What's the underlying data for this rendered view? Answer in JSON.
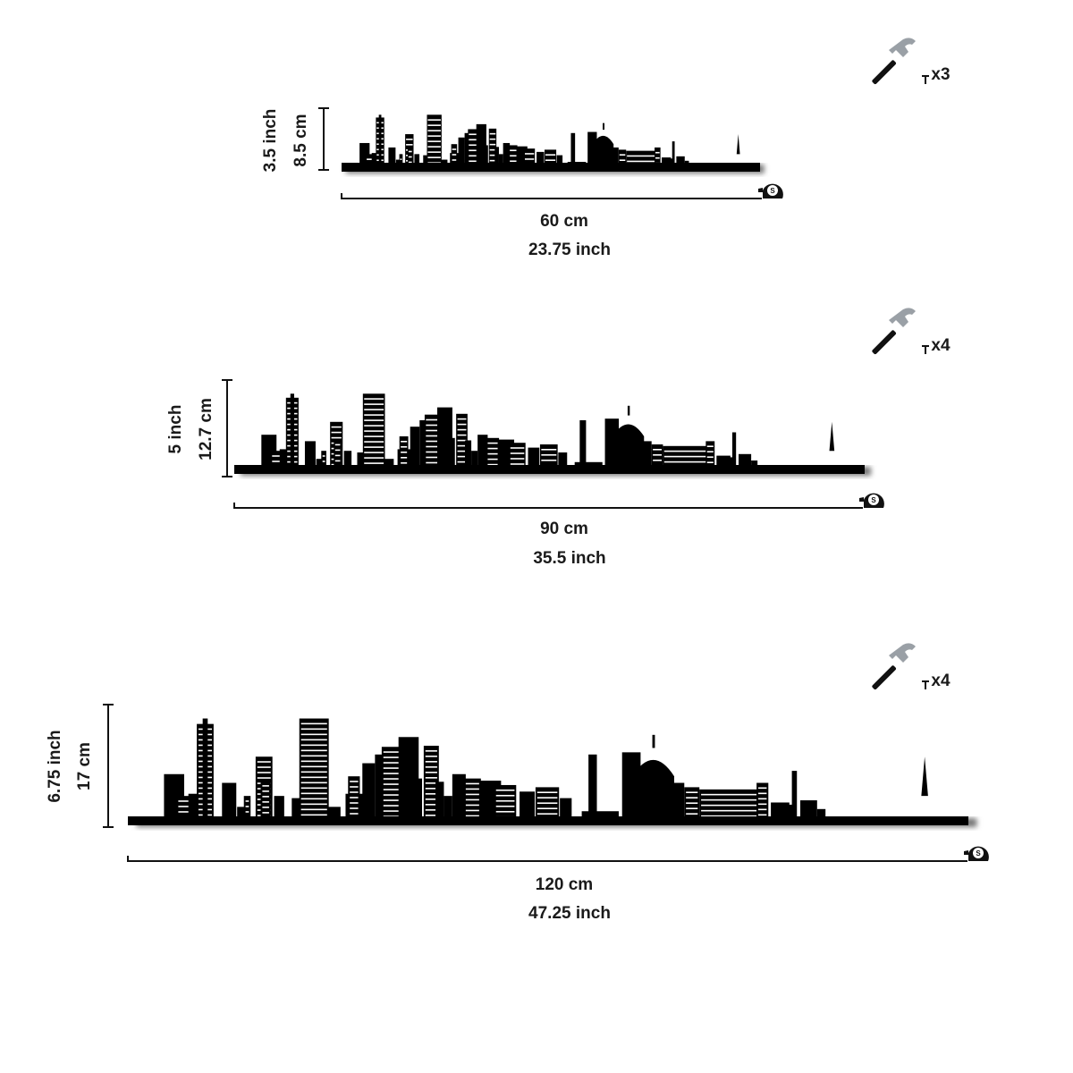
{
  "sizes": [
    {
      "height_inch": "3.5 inch",
      "height_cm": "8.5 cm",
      "width_cm": "60 cm",
      "width_inch": "23.75 inch",
      "nails": "x3"
    },
    {
      "height_inch": "5 inch",
      "height_cm": "12.7 cm",
      "width_cm": "90 cm",
      "width_inch": "35.5 inch",
      "nails": "x4"
    },
    {
      "height_inch": "6.75 inch",
      "height_cm": "17 cm",
      "width_cm": "120 cm",
      "width_inch": "47.25 inch",
      "nails": "x4"
    }
  ]
}
